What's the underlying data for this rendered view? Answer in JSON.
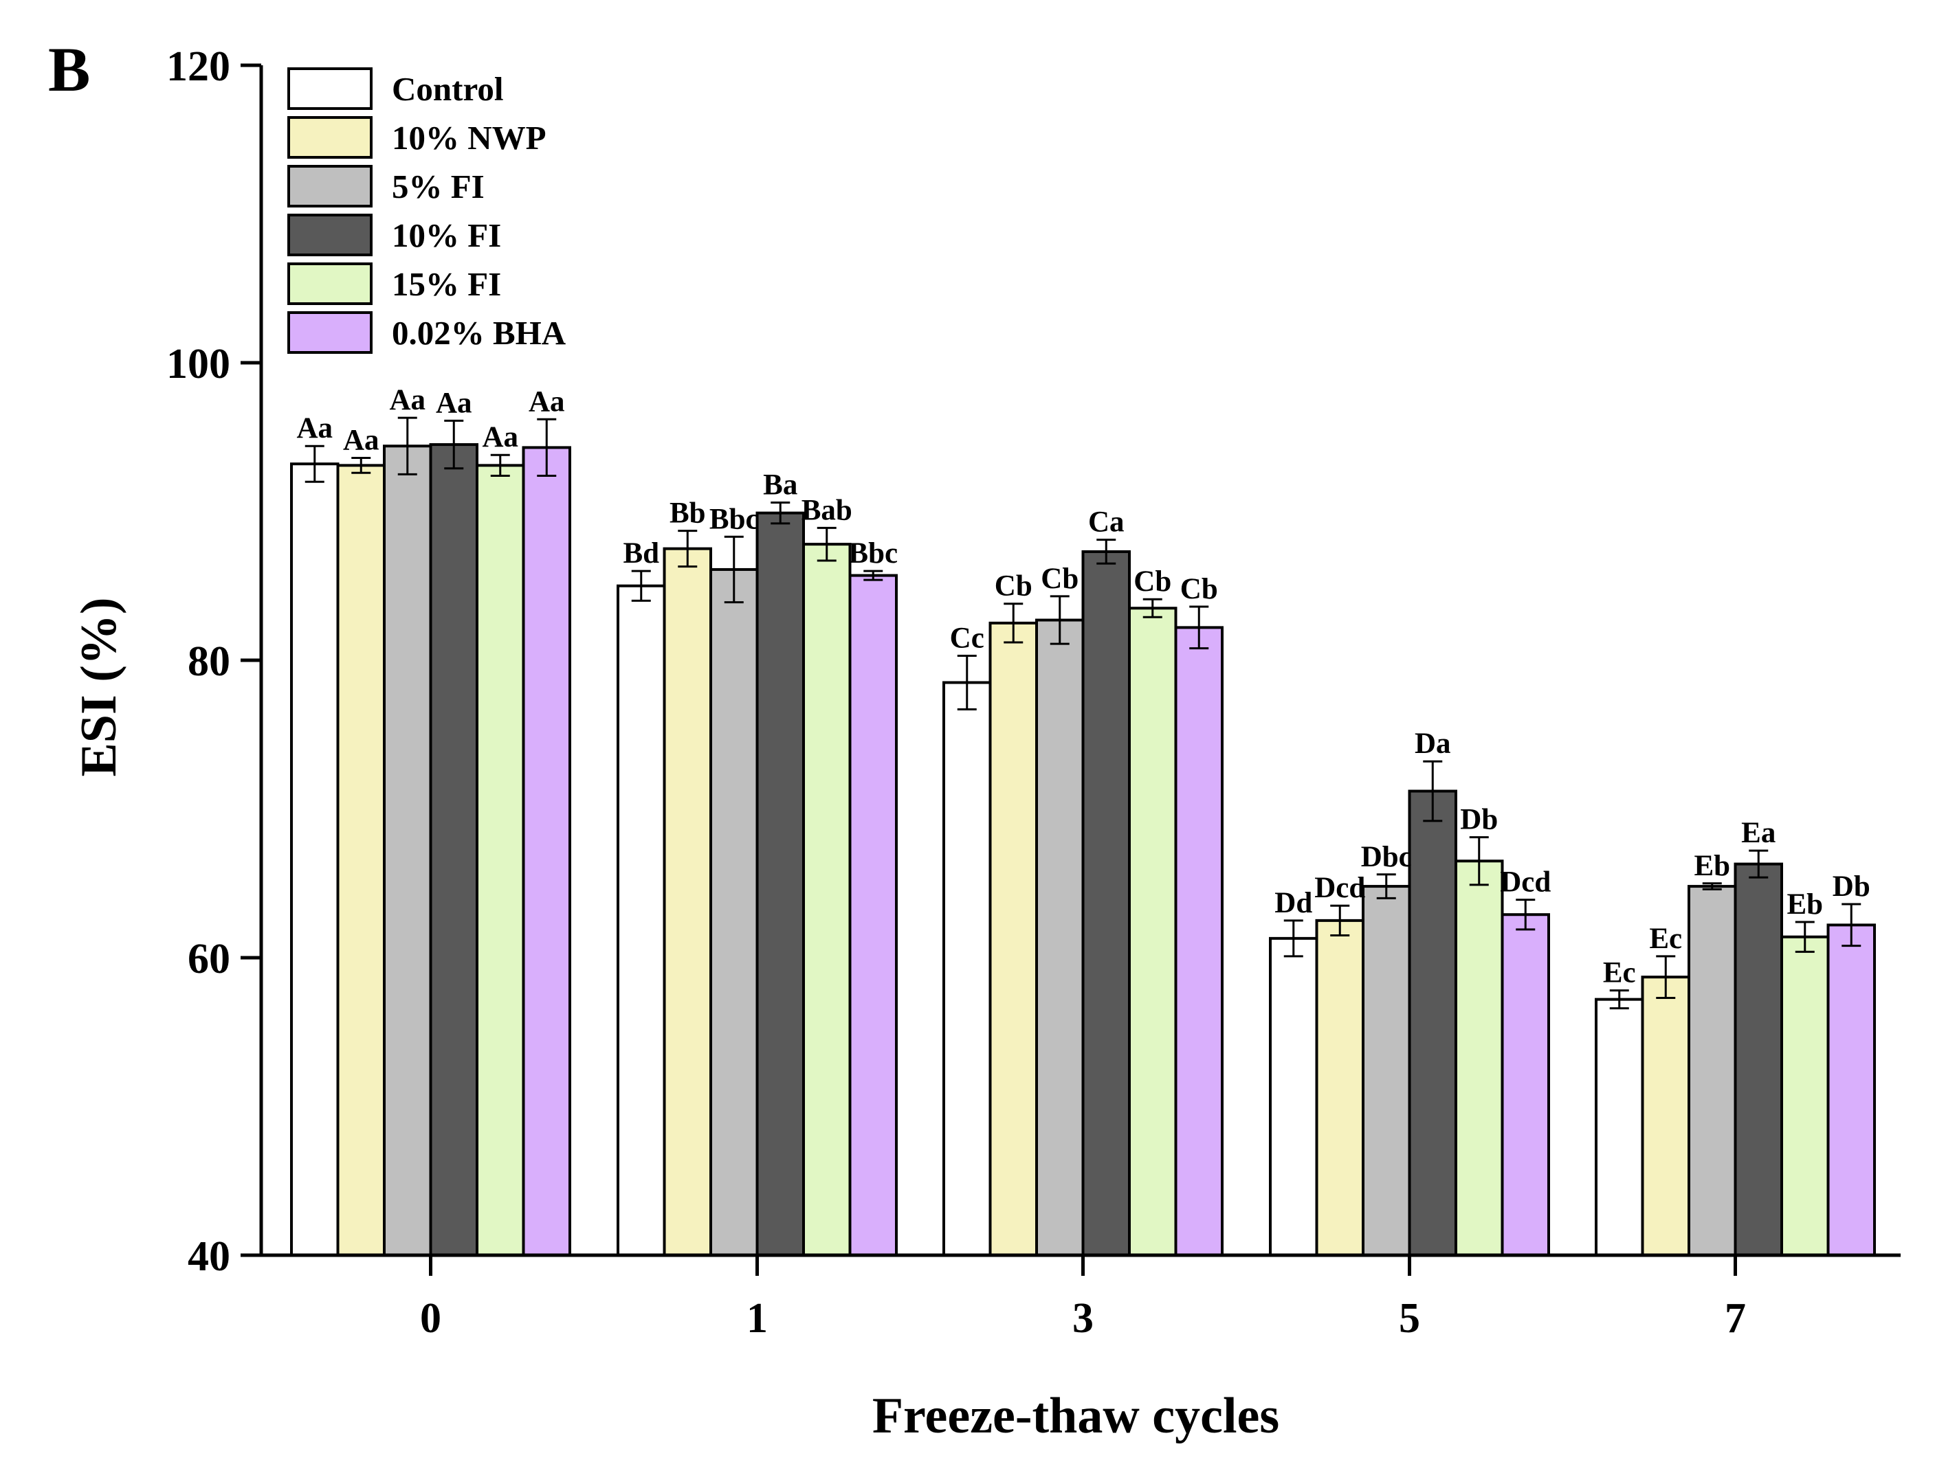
{
  "chart_data": {
    "type": "bar",
    "panel_label": "B",
    "title": "",
    "xlabel": "Freeze-thaw cycles",
    "ylabel": "ESI (%)",
    "ylim": [
      40,
      120
    ],
    "yticks": [
      "40",
      "60",
      "80",
      "100",
      "120"
    ],
    "categories": [
      "0",
      "1",
      "3",
      "5",
      "7"
    ],
    "legend_position": "top-left",
    "grid": false,
    "series": [
      {
        "name": "Control",
        "color": "#ffffff",
        "values": [
          93.2,
          85.0,
          78.5,
          61.3,
          57.2
        ],
        "errors": [
          1.2,
          1.0,
          1.8,
          1.2,
          0.6
        ],
        "labels": [
          "Aa",
          "Bd",
          "Cc",
          "Dd",
          "Ec"
        ]
      },
      {
        "name": "10% NWP",
        "color": "#f6f2bf",
        "values": [
          93.1,
          87.5,
          82.5,
          62.5,
          58.7
        ],
        "errors": [
          0.5,
          1.2,
          1.3,
          1.0,
          1.4
        ],
        "labels": [
          "Aa",
          "Bb",
          "Cb",
          "Dcd",
          "Ec"
        ]
      },
      {
        "name": "5% FI",
        "color": "#bfbfbf",
        "values": [
          94.4,
          86.1,
          82.7,
          64.8,
          64.8
        ],
        "errors": [
          1.9,
          2.2,
          1.6,
          0.8,
          0.2
        ],
        "labels": [
          "Aa",
          "Bbc",
          "Cb",
          "Dbc",
          "Eb"
        ]
      },
      {
        "name": "10% FI",
        "color": "#595959",
        "values": [
          94.5,
          89.9,
          87.3,
          71.2,
          66.3
        ],
        "errors": [
          1.6,
          0.7,
          0.8,
          2.0,
          0.9
        ],
        "labels": [
          "Aa",
          "Ba",
          "Ca",
          "Da",
          "Ea"
        ]
      },
      {
        "name": "15% FI",
        "color": "#e1f7c4",
        "values": [
          93.1,
          87.8,
          83.5,
          66.5,
          61.4
        ],
        "errors": [
          0.7,
          1.1,
          0.6,
          1.6,
          1.0
        ],
        "labels": [
          "Aa",
          "Bab",
          "Cb",
          "Db",
          "Eb"
        ]
      },
      {
        "name": "0.02% BHA",
        "color": "#d9affc",
        "values": [
          94.3,
          85.7,
          82.2,
          62.9,
          62.2
        ],
        "errors": [
          1.9,
          0.3,
          1.4,
          1.0,
          1.4
        ],
        "labels": [
          "Aa",
          "Bbc",
          "Cb",
          "Dcd",
          "Db"
        ]
      }
    ]
  }
}
